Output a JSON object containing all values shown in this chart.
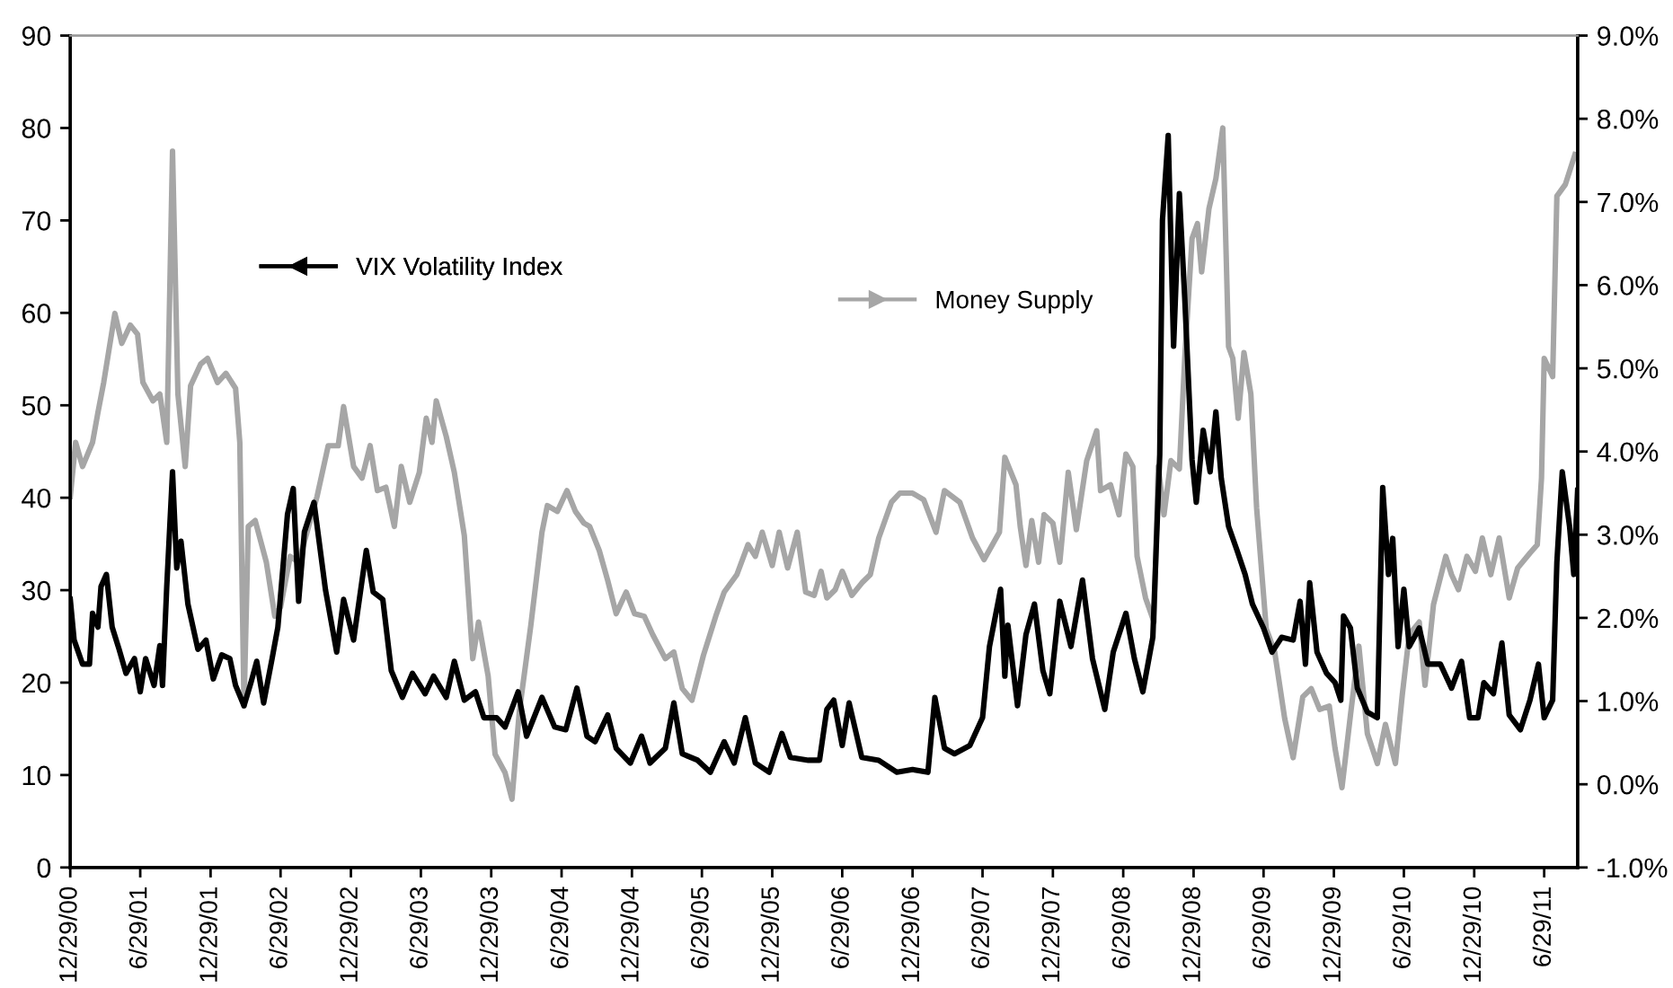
{
  "chart_data": {
    "type": "line",
    "xlim": [
      "2000-12-29",
      "2011-09-24"
    ],
    "ylim": [
      0,
      90
    ],
    "yticks": [
      0,
      10,
      20,
      30,
      40,
      50,
      60,
      70,
      80,
      90
    ],
    "y2lim": [
      -1,
      9
    ],
    "y2ticks": [
      {
        "value": -1,
        "label": "-1.0%"
      },
      {
        "value": 0,
        "label": "0.0%"
      },
      {
        "value": 1,
        "label": "1.0%"
      },
      {
        "value": 2,
        "label": "2.0%"
      },
      {
        "value": 3,
        "label": "3.0%"
      },
      {
        "value": 4,
        "label": "4.0%"
      },
      {
        "value": 5,
        "label": "5.0%"
      },
      {
        "value": 6,
        "label": "6.0%"
      },
      {
        "value": 7,
        "label": "7.0%"
      },
      {
        "value": 8,
        "label": "8.0%"
      },
      {
        "value": 9,
        "label": "9.0%"
      }
    ],
    "xticks": [
      {
        "value": "2000-12-29",
        "label": "12/29/00"
      },
      {
        "value": "2001-06-29",
        "label": "6/29/01"
      },
      {
        "value": "2001-12-29",
        "label": "12/29/01"
      },
      {
        "value": "2002-06-29",
        "label": "6/29/02"
      },
      {
        "value": "2002-12-29",
        "label": "12/29/02"
      },
      {
        "value": "2003-06-29",
        "label": "6/29/03"
      },
      {
        "value": "2003-12-29",
        "label": "12/29/03"
      },
      {
        "value": "2004-06-29",
        "label": "6/29/04"
      },
      {
        "value": "2004-12-29",
        "label": "12/29/04"
      },
      {
        "value": "2005-06-29",
        "label": "6/29/05"
      },
      {
        "value": "2005-12-29",
        "label": "12/29/05"
      },
      {
        "value": "2006-06-29",
        "label": "6/29/06"
      },
      {
        "value": "2006-12-29",
        "label": "12/29/06"
      },
      {
        "value": "2007-06-29",
        "label": "6/29/07"
      },
      {
        "value": "2007-12-29",
        "label": "12/29/07"
      },
      {
        "value": "2008-06-29",
        "label": "6/29/08"
      },
      {
        "value": "2008-12-29",
        "label": "12/29/08"
      },
      {
        "value": "2009-06-29",
        "label": "6/29/09"
      },
      {
        "value": "2009-12-29",
        "label": "12/29/09"
      },
      {
        "value": "2010-06-29",
        "label": "6/29/10"
      },
      {
        "value": "2010-12-29",
        "label": "12/29/10"
      },
      {
        "value": "2011-06-29",
        "label": "6/29/11"
      }
    ],
    "grid": false,
    "legend": "top",
    "marker": "none",
    "line_style": "solid",
    "series": [
      {
        "name": "Money Supply",
        "color": "#a6a6a6",
        "axis": "y2",
        "x": [
          "2000-12-29",
          "2001-01-12",
          "2001-01-30",
          "2001-02-25",
          "2001-03-11",
          "2001-03-26",
          "2001-04-24",
          "2001-05-12",
          "2001-06-03",
          "2001-06-22",
          "2001-07-06",
          "2001-08-01",
          "2001-08-19",
          "2001-09-06",
          "2001-09-21",
          "2001-10-05",
          "2001-10-24",
          "2001-11-07",
          "2001-12-03",
          "2001-12-21",
          "2002-01-16",
          "2002-02-07",
          "2002-03-04",
          "2002-03-15",
          "2002-03-26",
          "2002-04-06",
          "2002-04-24",
          "2002-05-23",
          "2002-06-14",
          "2002-06-29",
          "2002-07-24",
          "2002-08-15",
          "2002-09-10",
          "2002-10-02",
          "2002-10-31",
          "2002-11-26",
          "2002-12-10",
          "2003-01-05",
          "2003-01-27",
          "2003-02-17",
          "2003-03-08",
          "2003-03-30",
          "2003-04-21",
          "2003-05-09",
          "2003-05-31",
          "2003-06-25",
          "2003-07-13",
          "2003-07-28",
          "2003-08-08",
          "2003-09-03",
          "2003-09-24",
          "2003-10-20",
          "2003-11-11",
          "2003-11-26",
          "2003-12-21",
          "2004-01-08",
          "2004-02-03",
          "2004-02-21",
          "2004-03-11",
          "2004-04-10",
          "2004-05-09",
          "2004-05-23",
          "2004-06-18",
          "2004-07-13",
          "2004-08-04",
          "2004-08-26",
          "2004-09-10",
          "2004-10-05",
          "2004-10-27",
          "2004-11-18",
          "2004-12-14",
          "2005-01-05",
          "2005-01-30",
          "2005-02-21",
          "2005-03-26",
          "2005-04-17",
          "2005-05-09",
          "2005-06-03",
          "2005-07-03",
          "2005-08-04",
          "2005-08-26",
          "2005-09-28",
          "2005-10-27",
          "2005-11-15",
          "2005-12-03",
          "2005-12-29",
          "2006-01-16",
          "2006-02-07",
          "2006-03-04",
          "2006-03-26",
          "2006-04-17",
          "2006-05-05",
          "2006-05-20",
          "2006-06-11",
          "2006-06-29",
          "2006-07-03",
          "2006-07-24",
          "2006-08-19",
          "2006-09-10",
          "2006-10-02",
          "2006-11-04",
          "2006-11-26",
          "2006-12-29",
          "2007-01-27",
          "2007-02-28",
          "2007-03-22",
          "2007-05-01",
          "2007-06-03",
          "2007-07-03",
          "2007-08-12",
          "2007-08-26",
          "2007-09-24",
          "2007-10-05",
          "2007-10-20",
          "2007-11-04",
          "2007-11-22",
          "2007-12-06",
          "2007-12-29",
          "2008-01-16",
          "2008-02-07",
          "2008-02-28",
          "2008-03-26",
          "2008-04-21",
          "2008-05-01",
          "2008-05-27",
          "2008-06-18",
          "2008-07-06",
          "2008-07-24",
          "2008-08-04",
          "2008-08-26",
          "2008-09-17",
          "2008-09-28",
          "2008-10-13",
          "2008-10-31",
          "2008-11-22",
          "2008-12-06",
          "2008-12-25",
          "2009-01-08",
          "2009-01-19",
          "2009-02-07",
          "2009-02-25",
          "2009-03-15",
          "2009-03-30",
          "2009-04-10",
          "2009-04-24",
          "2009-05-09",
          "2009-05-27",
          "2009-06-11",
          "2009-07-06",
          "2009-07-28",
          "2009-08-23",
          "2009-09-14",
          "2009-10-09",
          "2009-10-31",
          "2009-11-22",
          "2009-12-17",
          "2010-01-01",
          "2010-01-19",
          "2010-02-10",
          "2010-03-04",
          "2010-03-26",
          "2010-04-21",
          "2010-05-12",
          "2010-06-07",
          "2010-06-25",
          "2010-07-13",
          "2010-08-08",
          "2010-08-23",
          "2010-09-14",
          "2010-10-16",
          "2010-10-31",
          "2010-11-18",
          "2010-12-10",
          "2011-01-01",
          "2011-01-19",
          "2011-02-10",
          "2011-03-04",
          "2011-03-30",
          "2011-04-21",
          "2011-05-23",
          "2011-06-11",
          "2011-06-22",
          "2011-06-29",
          "2011-07-21",
          "2011-08-01",
          "2011-08-23",
          "2011-09-17"
        ],
        "values": [
          3.46,
          4.11,
          3.82,
          4.11,
          4.47,
          4.83,
          5.66,
          5.3,
          5.52,
          5.41,
          4.83,
          4.61,
          4.69,
          4.11,
          7.61,
          4.69,
          3.82,
          4.79,
          5.05,
          5.12,
          4.83,
          4.94,
          4.76,
          4.11,
          0.94,
          3.1,
          3.17,
          2.67,
          2.02,
          2.13,
          2.74,
          2.67,
          3.1,
          3.46,
          4.07,
          4.07,
          4.54,
          3.82,
          3.68,
          4.07,
          3.53,
          3.57,
          3.1,
          3.82,
          3.39,
          3.75,
          4.4,
          4.11,
          4.61,
          4.18,
          3.75,
          2.99,
          1.51,
          1.95,
          1.3,
          0.36,
          0.14,
          -0.18,
          0.87,
          1.91,
          3.03,
          3.35,
          3.28,
          3.53,
          3.28,
          3.14,
          3.1,
          2.81,
          2.45,
          2.05,
          2.31,
          2.05,
          2.02,
          1.8,
          1.51,
          1.59,
          1.15,
          1.01,
          1.55,
          2.02,
          2.31,
          2.52,
          2.88,
          2.74,
          3.03,
          2.63,
          3.03,
          2.6,
          3.03,
          2.31,
          2.27,
          2.56,
          2.24,
          2.34,
          2.56,
          2.52,
          2.27,
          2.42,
          2.52,
          2.96,
          3.39,
          3.5,
          3.5,
          3.42,
          3.03,
          3.53,
          3.39,
          2.96,
          2.7,
          3.03,
          3.93,
          3.6,
          3.1,
          2.63,
          3.17,
          2.67,
          3.24,
          3.14,
          2.67,
          3.75,
          3.06,
          3.89,
          4.25,
          3.53,
          3.6,
          3.24,
          3.97,
          3.82,
          2.74,
          2.24,
          1.95,
          3.82,
          3.24,
          3.89,
          3.79,
          5.12,
          6.56,
          6.74,
          6.16,
          6.92,
          7.28,
          7.89,
          5.26,
          5.12,
          4.4,
          5.19,
          4.69,
          3.32,
          1.87,
          1.59,
          0.79,
          0.32,
          1.05,
          1.15,
          0.9,
          0.94,
          0.43,
          -0.04,
          0.83,
          1.66,
          0.61,
          0.25,
          0.72,
          0.25,
          1.08,
          1.8,
          1.95,
          1.19,
          2.16,
          2.74,
          2.52,
          2.34,
          2.74,
          2.56,
          2.96,
          2.52,
          2.96,
          2.24,
          2.6,
          2.78,
          2.88,
          3.68,
          5.12,
          4.9,
          7.07,
          7.21,
          7.57
        ]
      },
      {
        "name": "VIX Volatility Index",
        "color": "#000000",
        "x": [
          "2000-12-29",
          "2001-01-08",
          "2001-01-30",
          "2001-02-17",
          "2001-02-25",
          "2001-03-11",
          "2001-03-19",
          "2001-04-02",
          "2001-04-17",
          "2001-05-05",
          "2001-05-23",
          "2001-06-14",
          "2001-06-29",
          "2001-07-13",
          "2001-08-04",
          "2001-08-19",
          "2001-08-26",
          "2001-09-06",
          "2001-09-21",
          "2001-10-02",
          "2001-10-13",
          "2001-10-31",
          "2001-11-26",
          "2001-12-17",
          "2002-01-05",
          "2002-01-27",
          "2002-02-17",
          "2002-03-04",
          "2002-03-26",
          "2002-04-13",
          "2002-04-28",
          "2002-05-16",
          "2002-06-07",
          "2002-06-22",
          "2002-07-17",
          "2002-08-01",
          "2002-08-15",
          "2002-08-30",
          "2002-09-24",
          "2002-10-24",
          "2002-11-22",
          "2002-12-10",
          "2003-01-05",
          "2003-02-07",
          "2003-02-25",
          "2003-03-22",
          "2003-04-13",
          "2003-05-12",
          "2003-06-07",
          "2003-07-10",
          "2003-08-01",
          "2003-09-03",
          "2003-09-24",
          "2003-10-20",
          "2003-11-18",
          "2003-12-10",
          "2004-01-12",
          "2004-02-03",
          "2004-03-08",
          "2004-03-30",
          "2004-05-09",
          "2004-06-11",
          "2004-07-10",
          "2004-08-08",
          "2004-09-03",
          "2004-09-24",
          "2004-10-27",
          "2004-11-18",
          "2004-12-25",
          "2005-01-23",
          "2005-02-14",
          "2005-03-26",
          "2005-04-17",
          "2005-05-09",
          "2005-06-18",
          "2005-07-21",
          "2005-08-26",
          "2005-09-21",
          "2005-10-20",
          "2005-11-15",
          "2005-12-21",
          "2006-01-23",
          "2006-02-14",
          "2006-04-02",
          "2006-05-01",
          "2006-05-20",
          "2006-06-07",
          "2006-06-29",
          "2006-07-17",
          "2006-08-19",
          "2006-10-02",
          "2006-11-18",
          "2006-12-29",
          "2007-02-07",
          "2007-02-25",
          "2007-03-22",
          "2007-04-17",
          "2007-05-27",
          "2007-06-29",
          "2007-07-17",
          "2007-08-15",
          "2007-08-26",
          "2007-09-03",
          "2007-09-28",
          "2007-10-20",
          "2007-11-11",
          "2007-12-03",
          "2007-12-21",
          "2008-01-16",
          "2008-02-14",
          "2008-03-15",
          "2008-04-10",
          "2008-05-12",
          "2008-06-03",
          "2008-07-06",
          "2008-07-28",
          "2008-08-19",
          "2008-09-14",
          "2008-10-02",
          "2008-10-09",
          "2008-10-24",
          "2008-11-07",
          "2008-11-22",
          "2008-12-06",
          "2008-12-25",
          "2009-01-05",
          "2009-01-23",
          "2009-02-10",
          "2009-02-25",
          "2009-03-11",
          "2009-03-30",
          "2009-04-21",
          "2009-05-12",
          "2009-05-31",
          "2009-06-29",
          "2009-07-21",
          "2009-08-15",
          "2009-09-14",
          "2009-10-02",
          "2009-10-16",
          "2009-10-27",
          "2009-11-15",
          "2009-12-10",
          "2010-01-01",
          "2010-01-16",
          "2010-01-23",
          "2010-02-10",
          "2010-02-28",
          "2010-03-26",
          "2010-04-21",
          "2010-05-05",
          "2010-05-20",
          "2010-05-31",
          "2010-06-14",
          "2010-06-29",
          "2010-07-13",
          "2010-08-08",
          "2010-08-30",
          "2010-10-02",
          "2010-10-31",
          "2010-11-26",
          "2010-12-17",
          "2011-01-08",
          "2011-01-23",
          "2011-02-17",
          "2011-03-11",
          "2011-03-30",
          "2011-04-28",
          "2011-05-23",
          "2011-06-14",
          "2011-06-29",
          "2011-07-21",
          "2011-08-01",
          "2011-08-15",
          "2011-09-03",
          "2011-09-14",
          "2011-09-24"
        ],
        "values": [
          29,
          24.6,
          22,
          22,
          27.5,
          26,
          30.4,
          31.7,
          26,
          23.6,
          21,
          22.6,
          19,
          22.6,
          19.7,
          24,
          19.7,
          30.4,
          42.8,
          32.4,
          35.3,
          28.5,
          23.6,
          24.6,
          20.4,
          23,
          22.6,
          19.7,
          17.5,
          20,
          22.3,
          17.8,
          22.6,
          26,
          38.2,
          41,
          28.8,
          36.3,
          39.5,
          30,
          23.3,
          29,
          24.6,
          34.3,
          29.8,
          29,
          21.3,
          18.4,
          21,
          18.8,
          20.7,
          18.4,
          22.3,
          18.1,
          19,
          16.2,
          16.2,
          15.2,
          19,
          14.2,
          18.4,
          15.2,
          14.9,
          19.4,
          14.2,
          13.6,
          16.5,
          12.9,
          11.3,
          14.2,
          11.3,
          12.9,
          17.8,
          12.3,
          11.6,
          10.3,
          13.6,
          11.3,
          16.2,
          11.3,
          10.3,
          14.5,
          11.9,
          11.6,
          11.6,
          17.1,
          18.1,
          13.2,
          17.8,
          11.9,
          11.6,
          10.3,
          10.6,
          10.3,
          18.4,
          12.9,
          12.3,
          13.2,
          16.2,
          23.9,
          30.1,
          20.7,
          26.2,
          17.5,
          25.2,
          28.5,
          21.3,
          18.8,
          28.8,
          23.9,
          31.1,
          22.6,
          17.1,
          23.3,
          27.5,
          22.6,
          19,
          24.9,
          44.7,
          70,
          79.2,
          56.4,
          72.9,
          61.6,
          44.1,
          39.5,
          47.3,
          42.8,
          49.3,
          42.1,
          36.9,
          34.3,
          31.7,
          28.5,
          25.9,
          23.3,
          24.9,
          24.6,
          28.8,
          22,
          30.8,
          23.3,
          21,
          20,
          18.1,
          27.2,
          25.9,
          19.4,
          16.8,
          16.2,
          41.1,
          31.7,
          35.6,
          23.9,
          30.1,
          23.9,
          25.9,
          22,
          22,
          19.4,
          22.3,
          16.2,
          16.2,
          20,
          18.8,
          24.3,
          16.5,
          14.9,
          18.1,
          22,
          16.2,
          18.1,
          33,
          42.8,
          36.9,
          31.7,
          40.8
        ]
      }
    ]
  }
}
